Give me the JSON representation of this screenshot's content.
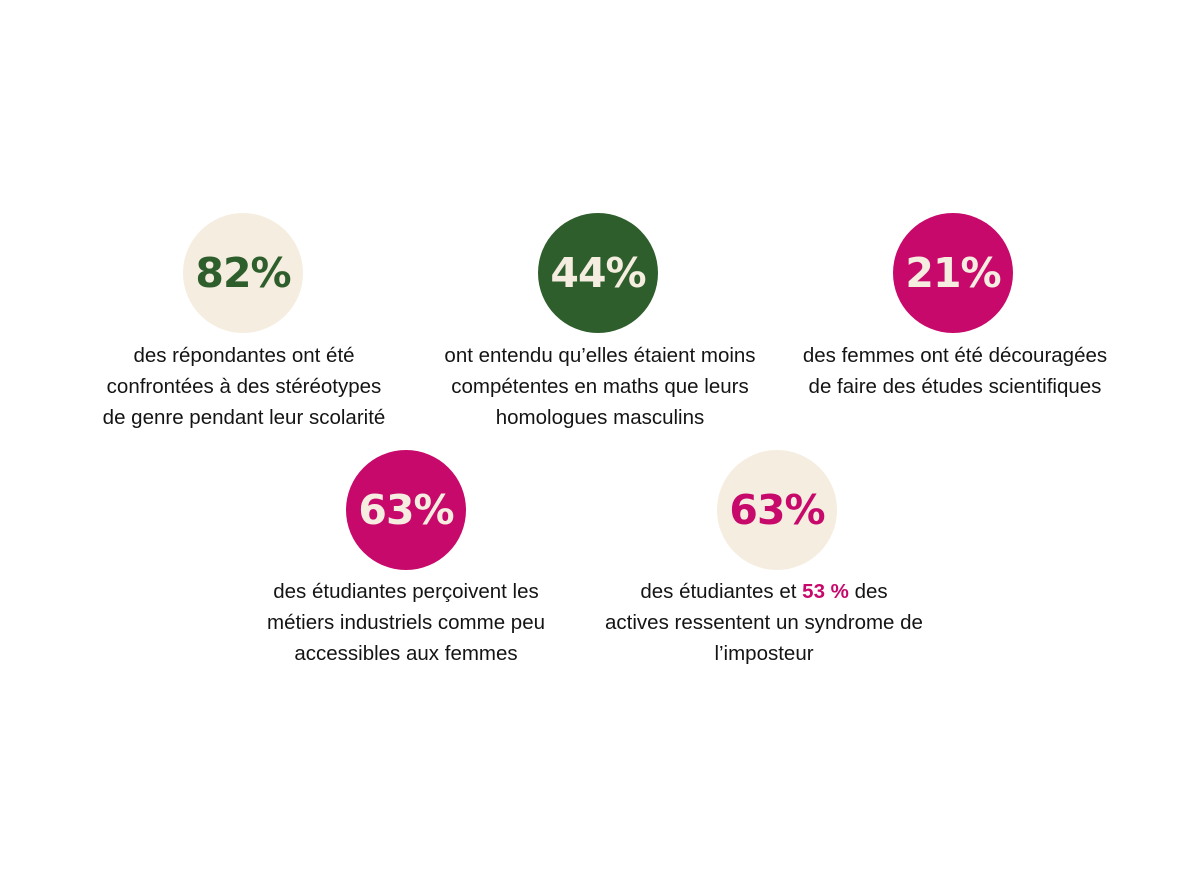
{
  "colors": {
    "cream": "#f5ede0",
    "dark_green": "#2e5e2c",
    "magenta": "#c7096b",
    "text": "#141414"
  },
  "stats": [
    {
      "value": "82%",
      "circle_color": "cream",
      "value_color": "dark_green",
      "lines": [
        "des répondantes ont été",
        "confrontées à des stéréotypes",
        "de genre pendant leur scolarité"
      ]
    },
    {
      "value": "44%",
      "circle_color": "dark_green",
      "value_color": "cream",
      "lines": [
        "ont entendu qu’elles étaient moins",
        "compétentes en maths que leurs",
        "homologues masculins"
      ]
    },
    {
      "value": "21%",
      "circle_color": "magenta",
      "value_color": "cream",
      "lines": [
        "des femmes ont été découragées",
        "de faire des études scientifiques"
      ]
    },
    {
      "value": "63%",
      "circle_color": "magenta",
      "value_color": "cream",
      "lines": [
        "des étudiantes perçoivent les",
        "métiers industriels comme peu",
        "accessibles aux femmes"
      ]
    },
    {
      "value": "63%",
      "circle_color": "cream",
      "value_color": "magenta",
      "line1_before": "des étudiantes et ",
      "line1_highlight": "53 %",
      "line1_after": " des",
      "lines": [
        "actives ressentent un syndrome de",
        "l’imposteur"
      ]
    }
  ]
}
